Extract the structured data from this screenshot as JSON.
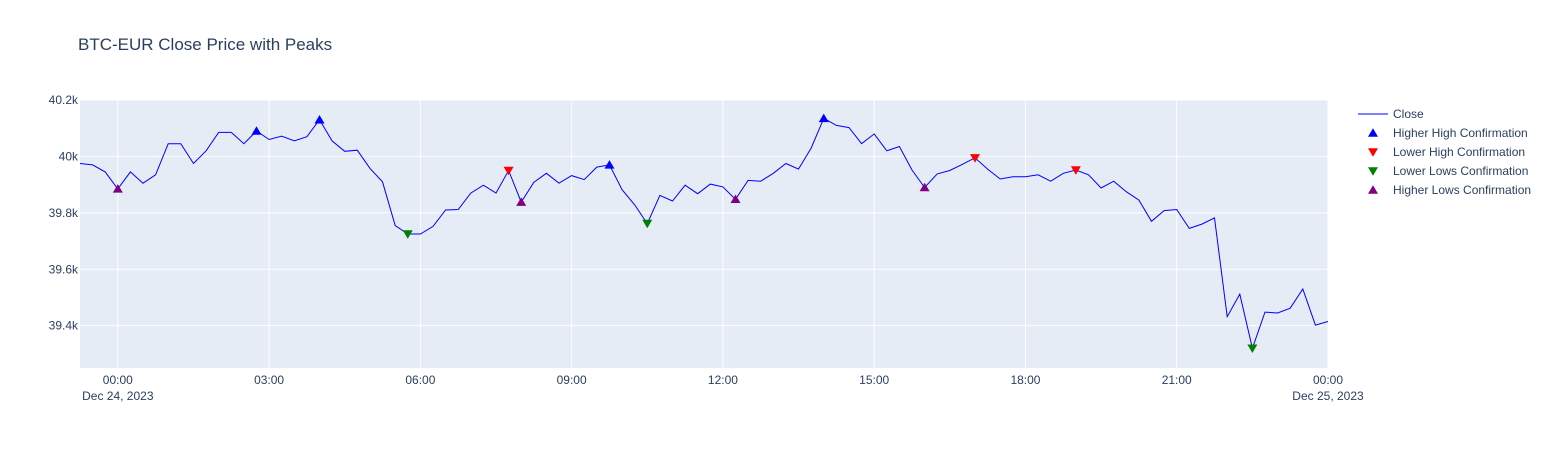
{
  "chart_data": {
    "type": "line",
    "title": "BTC-EUR Close Price with Peaks",
    "xlabel": "",
    "ylabel": "",
    "x_axis": {
      "range_hours": [
        -0.75,
        24
      ],
      "ticks": [
        {
          "hour": 0,
          "label": "00:00",
          "sublabel": "Dec 24, 2023"
        },
        {
          "hour": 3,
          "label": "03:00",
          "sublabel": ""
        },
        {
          "hour": 6,
          "label": "06:00",
          "sublabel": ""
        },
        {
          "hour": 9,
          "label": "09:00",
          "sublabel": ""
        },
        {
          "hour": 12,
          "label": "12:00",
          "sublabel": ""
        },
        {
          "hour": 15,
          "label": "15:00",
          "sublabel": ""
        },
        {
          "hour": 18,
          "label": "18:00",
          "sublabel": ""
        },
        {
          "hour": 21,
          "label": "21:00",
          "sublabel": ""
        },
        {
          "hour": 24,
          "label": "00:00",
          "sublabel": "Dec 25, 2023"
        }
      ]
    },
    "y_axis": {
      "range": [
        39250,
        40200
      ],
      "ticks": [
        {
          "value": 39400,
          "label": "39.4k"
        },
        {
          "value": 39600,
          "label": "39.6k"
        },
        {
          "value": 39800,
          "label": "39.8k"
        },
        {
          "value": 40000,
          "label": "40k"
        },
        {
          "value": 40200,
          "label": "40.2k"
        }
      ]
    },
    "grid": true,
    "legend_position": "top-right",
    "legend": [
      {
        "label": "Close",
        "color": "#0000ff",
        "symbol": "line"
      },
      {
        "label": "Higher High Confirmation",
        "color": "#0000ff",
        "symbol": "triangle-up"
      },
      {
        "label": "Lower High Confirmation",
        "color": "#ff0000",
        "symbol": "triangle-down"
      },
      {
        "label": "Lower Lows Confirmation",
        "color": "#008000",
        "symbol": "triangle-down"
      },
      {
        "label": "Higher Lows Confirmation",
        "color": "#800080",
        "symbol": "triangle-up"
      }
    ],
    "series": [
      {
        "name": "Close",
        "color": "#0000ff",
        "x_hours": [
          -0.75,
          -0.5,
          -0.25,
          0,
          0.25,
          0.5,
          0.75,
          1,
          1.25,
          1.5,
          1.75,
          2,
          2.25,
          2.5,
          2.75,
          3,
          3.25,
          3.5,
          3.75,
          4,
          4.25,
          4.5,
          4.75,
          5,
          5.25,
          5.5,
          5.75,
          6,
          6.25,
          6.5,
          6.75,
          7,
          7.25,
          7.5,
          7.75,
          8,
          8.25,
          8.5,
          8.75,
          9,
          9.25,
          9.5,
          9.75,
          10,
          10.25,
          10.5,
          10.75,
          11,
          11.25,
          11.5,
          11.75,
          12,
          12.25,
          12.5,
          12.75,
          13,
          13.25,
          13.5,
          13.75,
          14,
          14.25,
          14.5,
          14.75,
          15,
          15.25,
          15.5,
          15.75,
          16,
          16.25,
          16.5,
          16.75,
          17,
          17.25,
          17.5,
          17.75,
          18,
          18.25,
          18.5,
          18.75,
          19,
          19.25,
          19.5,
          19.75,
          20,
          20.25,
          20.5,
          20.75,
          21,
          21.25,
          21.5,
          21.75,
          22,
          22.25,
          22.5,
          22.75,
          23,
          23.25,
          23.5,
          23.75,
          24
        ],
        "values": [
          39975,
          39970,
          39945,
          39885,
          39945,
          39905,
          39935,
          40045,
          40045,
          39975,
          40020,
          40085,
          40085,
          40045,
          40090,
          40060,
          40072,
          40055,
          40070,
          40130,
          40055,
          40018,
          40022,
          39958,
          39910,
          39755,
          39725,
          39725,
          39752,
          39810,
          39812,
          39870,
          39898,
          39870,
          39950,
          39838,
          39908,
          39940,
          39905,
          39932,
          39918,
          39962,
          39970,
          39882,
          39828,
          39762,
          39862,
          39842,
          39898,
          39868,
          39902,
          39892,
          39848,
          39915,
          39912,
          39940,
          39975,
          39955,
          40030,
          40135,
          40110,
          40102,
          40045,
          40080,
          40020,
          40035,
          39952,
          39890,
          39938,
          39950,
          39972,
          39995,
          39955,
          39920,
          39928,
          39928,
          39935,
          39912,
          39940,
          39952,
          39935,
          39888,
          39912,
          39875,
          39845,
          39770,
          39808,
          39812,
          39745,
          39760,
          39782,
          39432,
          39512,
          39320,
          39448,
          39445,
          39462,
          39530,
          39402,
          39415
        ]
      },
      {
        "name": "Higher High Confirmation",
        "color": "#0000ff",
        "symbol": "triangle-up",
        "points": [
          [
            2.75,
            40090
          ],
          [
            4,
            40130
          ],
          [
            9.75,
            39970
          ],
          [
            14,
            40135
          ]
        ]
      },
      {
        "name": "Lower High Confirmation",
        "color": "#ff0000",
        "symbol": "triangle-down",
        "points": [
          [
            7.75,
            39950
          ],
          [
            17,
            39995
          ],
          [
            19,
            39952
          ]
        ]
      },
      {
        "name": "Lower Lows Confirmation",
        "color": "#008000",
        "symbol": "triangle-down",
        "points": [
          [
            5.75,
            39725
          ],
          [
            10.5,
            39762
          ],
          [
            22.5,
            39320
          ]
        ]
      },
      {
        "name": "Higher Lows Confirmation",
        "color": "#800080",
        "symbol": "triangle-up",
        "points": [
          [
            0,
            39885
          ],
          [
            8,
            39838
          ],
          [
            12.25,
            39848
          ],
          [
            16,
            39890
          ]
        ]
      }
    ]
  }
}
